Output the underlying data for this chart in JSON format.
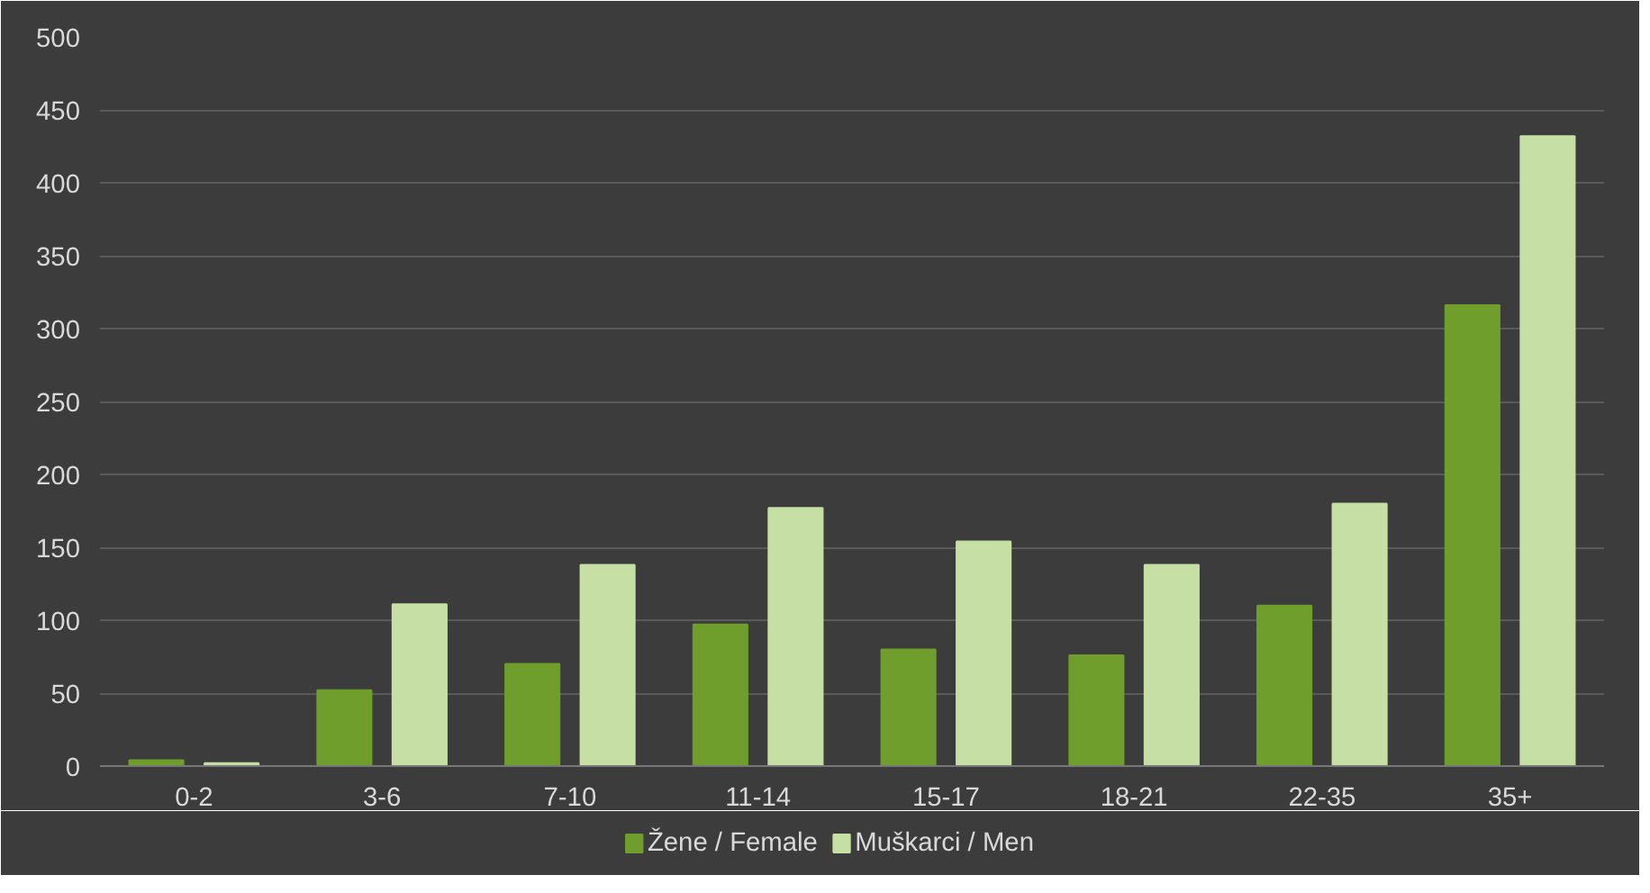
{
  "chart_data": {
    "type": "bar",
    "categories": [
      "0-2",
      "3-6",
      "7-10",
      "11-14",
      "15-17",
      "18-21",
      "22-35",
      "35+"
    ],
    "series": [
      {
        "name": "Žene / Female",
        "color": "#6f9e2c",
        "values": [
          4,
          52,
          70,
          97,
          80,
          76,
          110,
          316
        ]
      },
      {
        "name": "Muškarci /   Men",
        "color": "#c6dfa4",
        "values": [
          2,
          111,
          138,
          177,
          154,
          138,
          180,
          432
        ]
      }
    ],
    "ylim": [
      0,
      500
    ],
    "yticks": [
      0,
      50,
      100,
      150,
      200,
      250,
      300,
      350,
      400,
      450,
      500
    ],
    "grid": "y",
    "legend": "bottom"
  }
}
